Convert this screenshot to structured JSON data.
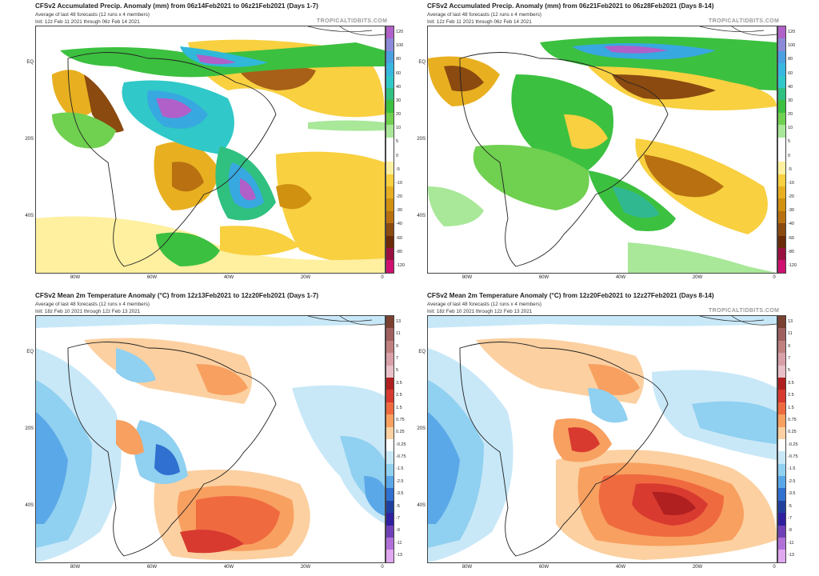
{
  "panels": [
    {
      "title": "CFSv2 Accumulated Precip. Anomaly (mm) from 06z14Feb2021 to 06z21Feb2021 (Days 1-7)",
      "subtitle": "Average of last 48 forecasts (12 runs x 4 members)",
      "init": "Init: 12z Feb 11 2021 through 06z Feb 14 2021",
      "brand": "TROPICALTIDBITS.COM"
    },
    {
      "title": "CFSv2 Accumulated Precip. Anomaly (mm) from 06z21Feb2021 to 06z28Feb2021 (Days 8-14)",
      "subtitle": "Average of last 48 forecasts (12 runs x 4 members)",
      "init": "Init: 12z Feb 11 2021 through 06z Feb 14 2021",
      "brand": "TROPICALTIDBITS.COM"
    },
    {
      "title": "CFSv2 Mean 2m Temperature Anomaly (°C) from 12z13Feb2021 to 12z20Feb2021 (Days 1-7)",
      "subtitle": "Average of last 48 forecasts (12 runs x 4 members)",
      "init": "Init: 18z Feb 10 2021 through 12z Feb 13 2021",
      "brand": ""
    },
    {
      "title": "CFSv2 Mean 2m Temperature Anomaly (°C) from 12z20Feb2021 to 12z27Feb2021 (Days 8-14)",
      "subtitle": "Average of last 48 forecasts (12 runs x 4 members)",
      "init": "Init: 18z Feb 10 2021 through 12z Feb 13 2021",
      "brand": "TROPICALTIDBITS.COM"
    }
  ],
  "lat_labels": [
    "EQ",
    "20S",
    "40S"
  ],
  "lon_labels": [
    "80W",
    "60W",
    "40W",
    "20W",
    "0"
  ],
  "precip_scale": {
    "labels": [
      "120",
      "100",
      "80",
      "60",
      "40",
      "30",
      "20",
      "10",
      "5",
      "0",
      "-5",
      "-10",
      "-20",
      "-30",
      "-40",
      "-60",
      "-80",
      "-120"
    ],
    "colors": [
      "#b060c8",
      "#8a8ad8",
      "#4aa0e0",
      "#38b8e0",
      "#30c8c8",
      "#30c080",
      "#3cc040",
      "#70d050",
      "#a8e898",
      "#ffffff",
      "#ffffff",
      "#fff0a0",
      "#f8d040",
      "#e8b020",
      "#d09010",
      "#b87010",
      "#8a4a10",
      "#6a2a08",
      "#9a1040",
      "#d01070"
    ]
  },
  "temp_scale": {
    "labels": [
      "13",
      "11",
      "9",
      "7",
      "5",
      "3.5",
      "2.5",
      "1.5",
      "0.75",
      "0.25",
      "-0.25",
      "-0.75",
      "-1.5",
      "-2.5",
      "-3.5",
      "-5",
      "-7",
      "-9",
      "-11",
      "-13"
    ],
    "colors": [
      "#7a4030",
      "#a06060",
      "#c08080",
      "#d8a0a8",
      "#e8c0c8",
      "#b02020",
      "#d83a30",
      "#f06a40",
      "#f8a060",
      "#fcd0a0",
      "#ffffff",
      "#c8e8f8",
      "#90d0f0",
      "#5aa8e8",
      "#3070d0",
      "#2040a0",
      "#3020a0",
      "#7040b8",
      "#b070d8",
      "#e0a8f0"
    ]
  }
}
